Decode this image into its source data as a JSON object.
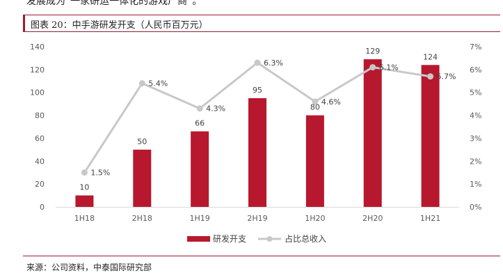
{
  "header_text": "发展成为“一家研运一体化的游戏厂商”。",
  "figure_title": "图表 20：中手游研发开支（人民币百万元）",
  "source": "来源：公司资料，中泰国际研究部",
  "colors": {
    "bar": "#b7182e",
    "line": "#c8c8c8",
    "frame": "#9b1b30"
  },
  "chart_data": {
    "type": "bar",
    "title": "中手游研发开支（人民币百万元）",
    "categories": [
      "1H18",
      "2H18",
      "1H19",
      "2H19",
      "1H20",
      "2H20",
      "1H21"
    ],
    "series": [
      {
        "name": "研发开支",
        "kind": "bar",
        "axis": "left",
        "values": [
          10,
          50,
          66,
          95,
          80,
          129,
          124
        ],
        "labels": [
          "10",
          "50",
          "66",
          "95",
          "80",
          "129",
          "124"
        ]
      },
      {
        "name": "占比总收入",
        "kind": "line",
        "axis": "right",
        "values": [
          1.5,
          5.4,
          4.3,
          6.3,
          4.6,
          6.1,
          5.7
        ],
        "labels": [
          "1.5%",
          "5.4%",
          "4.3%",
          "6.3%",
          "4.6%",
          "6.1%",
          "5.7%"
        ]
      }
    ],
    "y_left": {
      "range": [
        0,
        140
      ],
      "ticks": [
        0,
        20,
        40,
        60,
        80,
        100,
        120,
        140
      ],
      "tick_labels": [
        "0",
        "20",
        "40",
        "60",
        "80",
        "100",
        "120",
        "140"
      ]
    },
    "y_right": {
      "range": [
        0,
        7
      ],
      "ticks": [
        0,
        1,
        2,
        3,
        4,
        5,
        6,
        7
      ],
      "tick_labels": [
        "0%",
        "1%",
        "2%",
        "3%",
        "4%",
        "5%",
        "6%",
        "7%"
      ]
    },
    "legend": [
      "研发开支",
      "占比总收入"
    ],
    "legend_position": "bottom",
    "grid": false
  }
}
